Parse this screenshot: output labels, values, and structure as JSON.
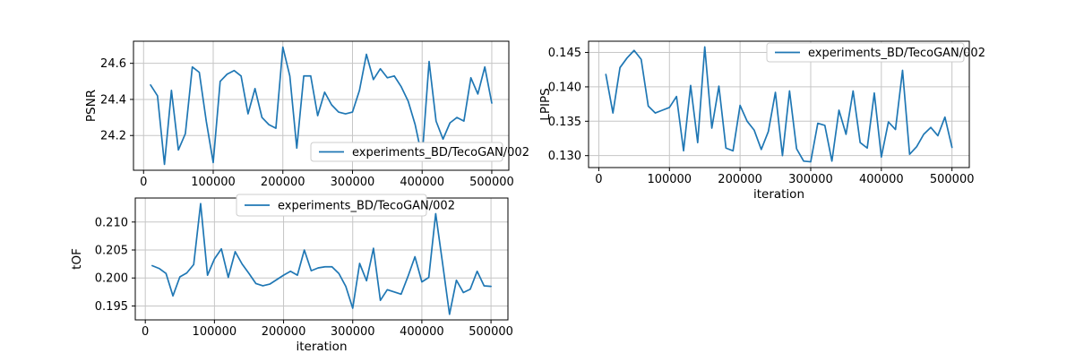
{
  "figure": {
    "background": "#ffffff",
    "line_color": "#1f77b4",
    "grid_color": "#c6c6c6",
    "spine_color": "#000000",
    "text_color": "#000000",
    "legend_edge_color": "#cccccc",
    "legend_face_color": "#ffffff"
  },
  "chart_data": [
    {
      "id": "psnr",
      "type": "line",
      "title": "",
      "xlabel": "",
      "ylabel": "PSNR",
      "legend_label": "experiments_BD/TecoGAN/002",
      "legend_position": "lower right",
      "grid": true,
      "x": [
        10000,
        20000,
        30000,
        40000,
        50000,
        60000,
        70000,
        80000,
        90000,
        100000,
        110000,
        120000,
        130000,
        140000,
        150000,
        160000,
        170000,
        180000,
        190000,
        200000,
        210000,
        220000,
        230000,
        240000,
        250000,
        260000,
        270000,
        280000,
        290000,
        300000,
        310000,
        320000,
        330000,
        340000,
        350000,
        360000,
        370000,
        380000,
        390000,
        400000,
        410000,
        420000,
        430000,
        440000,
        450000,
        460000,
        470000,
        480000,
        490000,
        500000
      ],
      "values": [
        24.48,
        24.42,
        24.04,
        24.45,
        24.12,
        24.21,
        24.58,
        24.55,
        24.28,
        24.05,
        24.5,
        24.54,
        24.56,
        24.53,
        24.32,
        24.46,
        24.3,
        24.26,
        24.24,
        24.69,
        24.53,
        24.13,
        24.53,
        24.53,
        24.31,
        24.44,
        24.37,
        24.33,
        24.32,
        24.33,
        24.45,
        24.65,
        24.51,
        24.57,
        24.52,
        24.53,
        24.47,
        24.39,
        24.26,
        24.08,
        24.61,
        24.28,
        24.18,
        24.27,
        24.3,
        24.28,
        24.52,
        24.43,
        24.58,
        24.38
      ],
      "xticks": [
        0,
        100000,
        200000,
        300000,
        400000,
        500000
      ],
      "xtick_labels": [
        "0",
        "100000",
        "200000",
        "300000",
        "400000",
        "500000"
      ],
      "yticks": [
        24.2,
        24.4,
        24.6
      ],
      "ytick_labels": [
        "24.2",
        "24.4",
        "24.6"
      ],
      "layout": {
        "axes": [
          149,
          46,
          419,
          144
        ],
        "ylabel_x": 106,
        "legend_box": [
          347,
          159,
          214,
          21
        ],
        "show_xlabel": false
      }
    },
    {
      "id": "lpips",
      "type": "line",
      "title": "",
      "xlabel": "iteration",
      "ylabel": "LPIPS",
      "legend_label": "experiments_BD/TecoGAN/002",
      "legend_position": "upper right",
      "grid": true,
      "x": [
        10000,
        20000,
        30000,
        40000,
        50000,
        60000,
        70000,
        80000,
        90000,
        100000,
        110000,
        120000,
        130000,
        140000,
        150000,
        160000,
        170000,
        180000,
        190000,
        200000,
        210000,
        220000,
        230000,
        240000,
        250000,
        260000,
        270000,
        280000,
        290000,
        300000,
        310000,
        320000,
        330000,
        340000,
        350000,
        360000,
        370000,
        380000,
        390000,
        400000,
        410000,
        420000,
        430000,
        440000,
        450000,
        460000,
        470000,
        480000,
        490000,
        500000
      ],
      "values": [
        0.1418,
        0.1362,
        0.1428,
        0.1442,
        0.1453,
        0.144,
        0.1372,
        0.1362,
        0.1366,
        0.137,
        0.1386,
        0.1307,
        0.1402,
        0.1319,
        0.1458,
        0.134,
        0.1401,
        0.1311,
        0.1307,
        0.1373,
        0.135,
        0.1337,
        0.1309,
        0.1335,
        0.1392,
        0.13,
        0.1394,
        0.131,
        0.1292,
        0.1291,
        0.1347,
        0.1344,
        0.1292,
        0.1366,
        0.1331,
        0.1394,
        0.1319,
        0.1311,
        0.1391,
        0.1298,
        0.1349,
        0.1338,
        0.1424,
        0.1302,
        0.1313,
        0.1331,
        0.1341,
        0.1329,
        0.1356,
        0.1312
      ],
      "xticks": [
        0,
        100000,
        200000,
        300000,
        400000,
        500000
      ],
      "xtick_labels": [
        "0",
        "100000",
        "200000",
        "300000",
        "400000",
        "500000"
      ],
      "yticks": [
        0.13,
        0.135,
        0.14,
        0.145
      ],
      "ytick_labels": [
        "0.130",
        "0.135",
        "0.140",
        "0.145"
      ],
      "layout": {
        "axes": [
          657,
          46,
          425,
          141
        ],
        "ylabel_x": 613,
        "legend_box": [
          856,
          48,
          220,
          21
        ],
        "show_xlabel": true
      }
    },
    {
      "id": "tof",
      "type": "line",
      "title": "",
      "xlabel": "iteration",
      "ylabel": "tOF",
      "legend_label": "experiments_BD/TecoGAN/002",
      "legend_position": "upper center",
      "grid": true,
      "x": [
        10000,
        20000,
        30000,
        40000,
        50000,
        60000,
        70000,
        80000,
        90000,
        100000,
        110000,
        120000,
        130000,
        140000,
        150000,
        160000,
        170000,
        180000,
        190000,
        200000,
        210000,
        220000,
        230000,
        240000,
        250000,
        260000,
        270000,
        280000,
        290000,
        300000,
        310000,
        320000,
        330000,
        340000,
        350000,
        360000,
        370000,
        380000,
        390000,
        400000,
        410000,
        420000,
        430000,
        440000,
        450000,
        460000,
        470000,
        480000,
        490000,
        500000
      ],
      "values": [
        0.2022,
        0.2017,
        0.2008,
        0.1968,
        0.2002,
        0.2009,
        0.2024,
        0.2133,
        0.2005,
        0.2034,
        0.2052,
        0.2001,
        0.2047,
        0.2025,
        0.2008,
        0.199,
        0.1986,
        0.1989,
        0.1997,
        0.2005,
        0.2012,
        0.2005,
        0.205,
        0.2013,
        0.2018,
        0.202,
        0.202,
        0.2008,
        0.1985,
        0.1946,
        0.2026,
        0.1995,
        0.2053,
        0.196,
        0.1979,
        0.1975,
        0.1971,
        0.2003,
        0.2038,
        0.1993,
        0.2001,
        0.2115,
        0.2026,
        0.1935,
        0.1996,
        0.1974,
        0.198,
        0.2012,
        0.1986,
        0.1985
      ],
      "xticks": [
        0,
        100000,
        200000,
        300000,
        400000,
        500000
      ],
      "xtick_labels": [
        "0",
        "100000",
        "200000",
        "300000",
        "400000",
        "500000"
      ],
      "yticks": [
        0.195,
        0.2,
        0.205,
        0.21
      ],
      "ytick_labels": [
        "0.195",
        "0.200",
        "0.205",
        "0.210"
      ],
      "layout": {
        "axes": [
          151,
          221,
          416,
          136
        ],
        "ylabel_x": 90,
        "legend_box": [
          264,
          217,
          212,
          24
        ],
        "show_xlabel": true
      }
    }
  ]
}
